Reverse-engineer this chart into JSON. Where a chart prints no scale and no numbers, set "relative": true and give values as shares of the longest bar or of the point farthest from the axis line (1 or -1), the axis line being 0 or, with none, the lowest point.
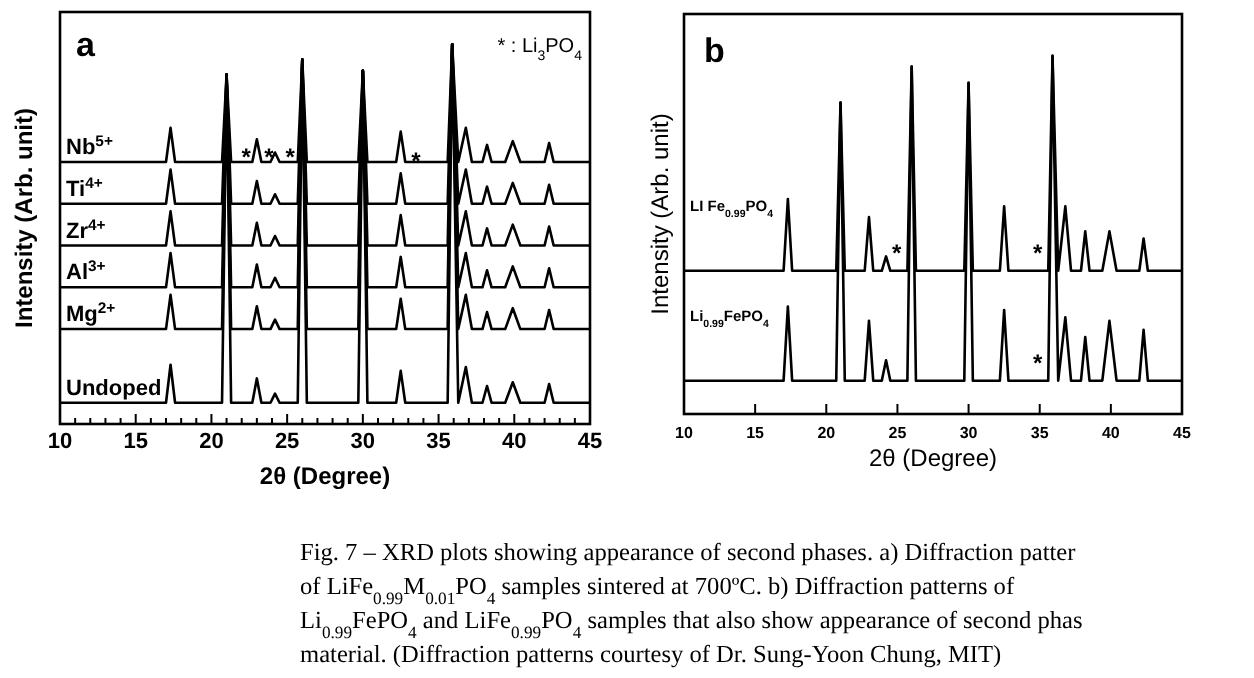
{
  "chart_data": [
    {
      "type": "line",
      "title": "a",
      "xlabel": "2θ (Degree)",
      "ylabel": "Intensity (Arb. unit)",
      "relative": true,
      "marker": "none",
      "line_style": "solid",
      "xlim": [
        10,
        45
      ],
      "xticks": [
        10,
        {
          "value": 11,
          "label": null
        },
        {
          "value": 12,
          "label": null
        },
        {
          "value": 13,
          "label": null
        },
        {
          "value": 14,
          "label": null
        },
        15,
        {
          "value": 16,
          "label": null
        },
        {
          "value": 17,
          "label": null
        },
        {
          "value": 18,
          "label": null
        },
        {
          "value": 19,
          "label": null
        },
        20,
        {
          "value": 21,
          "label": null
        },
        {
          "value": 22,
          "label": null
        },
        {
          "value": 23,
          "label": null
        },
        {
          "value": 24,
          "label": null
        },
        25,
        {
          "value": 26,
          "label": null
        },
        {
          "value": 27,
          "label": null
        },
        {
          "value": 28,
          "label": null
        },
        {
          "value": 29,
          "label": null
        },
        30,
        {
          "value": 31,
          "label": null
        },
        {
          "value": 32,
          "label": null
        },
        {
          "value": 33,
          "label": null
        },
        {
          "value": 34,
          "label": null
        },
        35,
        {
          "value": 36,
          "label": null
        },
        {
          "value": 37,
          "label": null
        },
        {
          "value": 38,
          "label": null
        },
        {
          "value": 39,
          "label": null
        },
        40,
        {
          "value": 41,
          "label": null
        },
        {
          "value": 42,
          "label": null
        },
        {
          "value": 43,
          "label": null
        },
        {
          "value": 44,
          "label": null
        },
        45
      ],
      "x": [
        10,
        17.0,
        17.3,
        17.6,
        20.7,
        21.0,
        21.3,
        22.7,
        23.0,
        23.3,
        23.9,
        24.2,
        24.5,
        25.7,
        26.0,
        26.3,
        29.7,
        30.0,
        30.3,
        32.2,
        32.5,
        32.8,
        35.6,
        35.9,
        36.3,
        36.8,
        37.2,
        37.9,
        38.2,
        38.5,
        39.4,
        39.9,
        40.4,
        42.0,
        42.3,
        42.6,
        45
      ],
      "series": [
        {
          "name": "Nb$^{5+}$",
          "color": "#000000",
          "values": [
            0.69,
            0.69,
            0.78,
            0.69,
            0.69,
            0.92,
            0.69,
            0.69,
            0.75,
            0.69,
            0.69,
            0.715,
            0.69,
            0.69,
            0.96,
            0.69,
            0.69,
            0.93,
            0.69,
            0.69,
            0.77,
            0.69,
            0.69,
            1.0,
            0.69,
            0.78,
            0.69,
            0.69,
            0.735,
            0.69,
            0.69,
            0.745,
            0.69,
            0.69,
            0.74,
            0.69,
            0.69
          ]
        },
        {
          "name": "Ti$^{4+}$",
          "color": "#000000",
          "values": [
            0.58,
            0.58,
            0.67,
            0.58,
            0.58,
            0.92,
            0.58,
            0.58,
            0.64,
            0.58,
            0.58,
            0.605,
            0.58,
            0.58,
            0.96,
            0.58,
            0.58,
            0.93,
            0.58,
            0.58,
            0.66,
            0.58,
            0.58,
            1.0,
            0.58,
            0.67,
            0.58,
            0.58,
            0.625,
            0.58,
            0.58,
            0.635,
            0.58,
            0.58,
            0.63,
            0.58,
            0.58
          ]
        },
        {
          "name": "Zr$^{4+}$",
          "color": "#000000",
          "values": [
            0.47,
            0.47,
            0.56,
            0.47,
            0.47,
            0.92,
            0.47,
            0.47,
            0.53,
            0.47,
            0.47,
            0.495,
            0.47,
            0.47,
            0.96,
            0.47,
            0.47,
            0.93,
            0.47,
            0.47,
            0.55,
            0.47,
            0.47,
            1.0,
            0.47,
            0.56,
            0.47,
            0.47,
            0.515,
            0.47,
            0.47,
            0.525,
            0.47,
            0.47,
            0.52,
            0.47,
            0.47
          ]
        },
        {
          "name": "Al$^{3+}$",
          "color": "#000000",
          "values": [
            0.36,
            0.36,
            0.45,
            0.36,
            0.36,
            0.92,
            0.36,
            0.36,
            0.42,
            0.36,
            0.36,
            0.385,
            0.36,
            0.36,
            0.96,
            0.36,
            0.36,
            0.93,
            0.36,
            0.36,
            0.44,
            0.36,
            0.36,
            1.0,
            0.36,
            0.45,
            0.36,
            0.36,
            0.405,
            0.36,
            0.36,
            0.415,
            0.36,
            0.36,
            0.41,
            0.36,
            0.36
          ]
        },
        {
          "name": "Mg$^{2+}$",
          "color": "#000000",
          "values": [
            0.25,
            0.25,
            0.34,
            0.25,
            0.25,
            0.92,
            0.25,
            0.25,
            0.31,
            0.25,
            0.25,
            0.275,
            0.25,
            0.25,
            0.96,
            0.25,
            0.25,
            0.93,
            0.25,
            0.25,
            0.33,
            0.25,
            0.25,
            1.0,
            0.25,
            0.34,
            0.25,
            0.25,
            0.295,
            0.25,
            0.25,
            0.305,
            0.25,
            0.25,
            0.3,
            0.25,
            0.25
          ]
        },
        {
          "name": "Undoped",
          "color": "#000000",
          "values": [
            0.056,
            0.056,
            0.156,
            0.056,
            0.056,
            0.92,
            0.056,
            0.056,
            0.12,
            0.056,
            0.056,
            0.08,
            0.056,
            0.056,
            0.96,
            0.056,
            0.056,
            0.93,
            0.056,
            0.056,
            0.14,
            0.056,
            0.056,
            1.0,
            0.056,
            0.15,
            0.056,
            0.056,
            0.1,
            0.056,
            0.056,
            0.11,
            0.056,
            0.056,
            0.105,
            0.056,
            0.056
          ]
        }
      ],
      "annotations": [
        "* : Li$_{3}$PO$_{4}$",
        {
          "text": "*",
          "x": 22.3,
          "y": 0.72
        },
        {
          "text": "*",
          "x": 23.8,
          "y": 0.72
        },
        {
          "text": "*",
          "x": 25.2,
          "y": 0.72
        },
        {
          "text": "*",
          "x": 33.5,
          "y": 0.71
        }
      ]
    },
    {
      "type": "line",
      "title": "b",
      "xlabel": "2θ (Degree)",
      "ylabel": "Intensity (Arb. unit)",
      "relative": true,
      "marker": "none",
      "line_style": "solid",
      "xlim": [
        10,
        45
      ],
      "xticks": [
        10,
        15,
        20,
        25,
        30,
        35,
        40,
        45
      ],
      "x": [
        10,
        17.0,
        17.3,
        17.6,
        20.7,
        21.0,
        21.3,
        22.7,
        23.0,
        23.3,
        23.9,
        24.2,
        24.5,
        25.7,
        26.0,
        26.3,
        29.7,
        30.0,
        30.3,
        32.2,
        32.5,
        32.8,
        35.6,
        35.9,
        36.3,
        36.8,
        37.2,
        37.9,
        38.2,
        38.5,
        39.4,
        39.9,
        40.4,
        42.0,
        42.3,
        42.6,
        45
      ],
      "series": [
        {
          "name": "LI Fe$_{0.99}$PO$_{4}$",
          "color": "#000000",
          "values": [
            0.4,
            0.4,
            0.6,
            0.4,
            0.4,
            0.87,
            0.4,
            0.4,
            0.55,
            0.4,
            0.4,
            0.44,
            0.4,
            0.4,
            0.97,
            0.4,
            0.4,
            0.925,
            0.4,
            0.4,
            0.58,
            0.4,
            0.4,
            1.0,
            0.4,
            0.58,
            0.4,
            0.4,
            0.51,
            0.4,
            0.4,
            0.51,
            0.4,
            0.4,
            0.49,
            0.4,
            0.4
          ]
        },
        {
          "name": "Li$_{0.99}$FePO$_{4}$",
          "color": "#000000",
          "values": [
            0.093,
            0.093,
            0.3,
            0.093,
            0.093,
            0.87,
            0.093,
            0.093,
            0.26,
            0.093,
            0.093,
            0.15,
            0.093,
            0.093,
            0.97,
            0.093,
            0.093,
            0.925,
            0.093,
            0.093,
            0.29,
            0.093,
            0.093,
            1.0,
            0.093,
            0.27,
            0.093,
            0.093,
            0.215,
            0.093,
            0.093,
            0.26,
            0.093,
            0.093,
            0.235,
            0.093,
            0.093
          ]
        }
      ],
      "annotations": [
        {
          "text": "*",
          "x": 25.7,
          "y": 0.4
        },
        {
          "text": "*",
          "x": 35.6,
          "y": 0.4
        },
        {
          "text": "*",
          "x": 35.6,
          "y": 0.093
        },
        "Fig. 7 – XRD plots showing appearance of second phases.  a) Diffraction patter",
        "of LiFe$_{0.99}$M$_{0.01}$PO$_{4}$ samples sintered at 700ºC.  b) Diffraction patterns of",
        "Li$_{0.99}$FePO$_{4}$ and LiFe$_{0.99}$PO$_{4}$ samples that also show appearance of second phas",
        "material. (Diffraction patterns courtesy of Dr. Sung-Yoon Chung, MIT)"
      ]
    }
  ]
}
